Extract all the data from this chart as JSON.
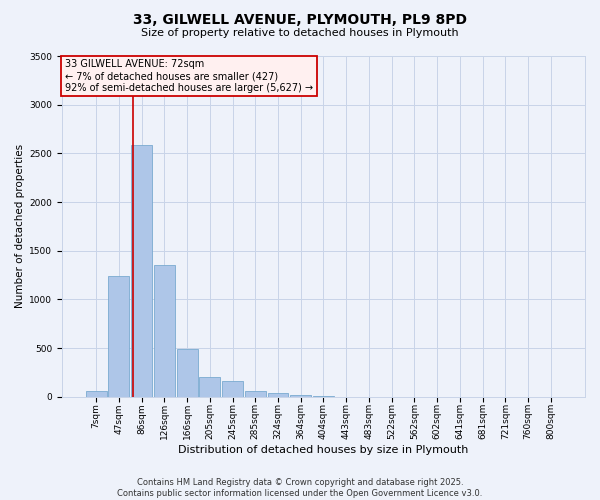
{
  "title": "33, GILWELL AVENUE, PLYMOUTH, PL9 8PD",
  "subtitle": "Size of property relative to detached houses in Plymouth",
  "xlabel": "Distribution of detached houses by size in Plymouth",
  "ylabel": "Number of detached properties",
  "footer_line1": "Contains HM Land Registry data © Crown copyright and database right 2025.",
  "footer_line2": "Contains public sector information licensed under the Open Government Licence v3.0.",
  "property_label": "33 GILWELL AVENUE: 72sqm",
  "annotation_line2": "← 7% of detached houses are smaller (427)",
  "annotation_line3": "92% of semi-detached houses are larger (5,627) →",
  "bin_labels": [
    "7sqm",
    "47sqm",
    "86sqm",
    "126sqm",
    "166sqm",
    "205sqm",
    "245sqm",
    "285sqm",
    "324sqm",
    "364sqm",
    "404sqm",
    "443sqm",
    "483sqm",
    "522sqm",
    "562sqm",
    "602sqm",
    "641sqm",
    "681sqm",
    "721sqm",
    "760sqm",
    "800sqm"
  ],
  "bar_heights": [
    60,
    1240,
    2590,
    1350,
    490,
    200,
    160,
    55,
    40,
    15,
    5,
    0,
    0,
    0,
    0,
    0,
    0,
    0,
    0,
    0,
    0
  ],
  "bar_color": "#aec6e8",
  "bar_edge_color": "#7aaad0",
  "vline_color": "#cc0000",
  "vline_x": 1.62,
  "background_color": "#eef2fa",
  "grid_color": "#c8d4e8",
  "annotation_box_facecolor": "#fff0f0",
  "annotation_border_color": "#cc0000",
  "ylim": [
    0,
    3500
  ],
  "yticks": [
    0,
    500,
    1000,
    1500,
    2000,
    2500,
    3000,
    3500
  ],
  "title_fontsize": 10,
  "subtitle_fontsize": 8,
  "tick_fontsize": 6.5,
  "ylabel_fontsize": 7.5,
  "xlabel_fontsize": 8,
  "annotation_fontsize": 7,
  "footer_fontsize": 6
}
